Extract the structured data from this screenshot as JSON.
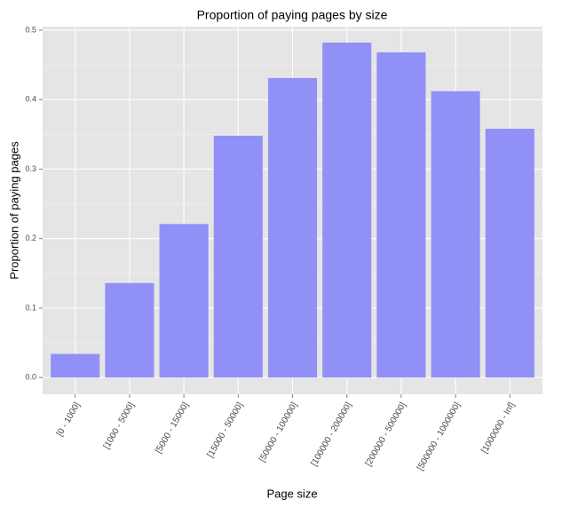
{
  "chart_data": {
    "type": "bar",
    "title": "Proportion of paying pages by size",
    "x_label": "Page size",
    "y_label": "Proportion of paying pages",
    "categories": [
      "[0 - 1000]",
      "[1000 - 5000]",
      "[5000 - 15000]",
      "[15000 - 50000]",
      "[50000 - 100000]",
      "[100000 - 200000]",
      "[200000 - 500000]",
      "[500000 - 1000000]",
      "[1000000 - Inf]"
    ],
    "values": [
      0.034,
      0.136,
      0.221,
      0.348,
      0.431,
      0.482,
      0.468,
      0.412,
      0.358
    ],
    "color": "#9090f7",
    "ylim": [
      -0.024,
      0.505
    ],
    "yticks": [
      {
        "value": 0,
        "label": "0.0"
      },
      0.1,
      0.2,
      0.3,
      0.4,
      0.5
    ],
    "grid": true
  }
}
